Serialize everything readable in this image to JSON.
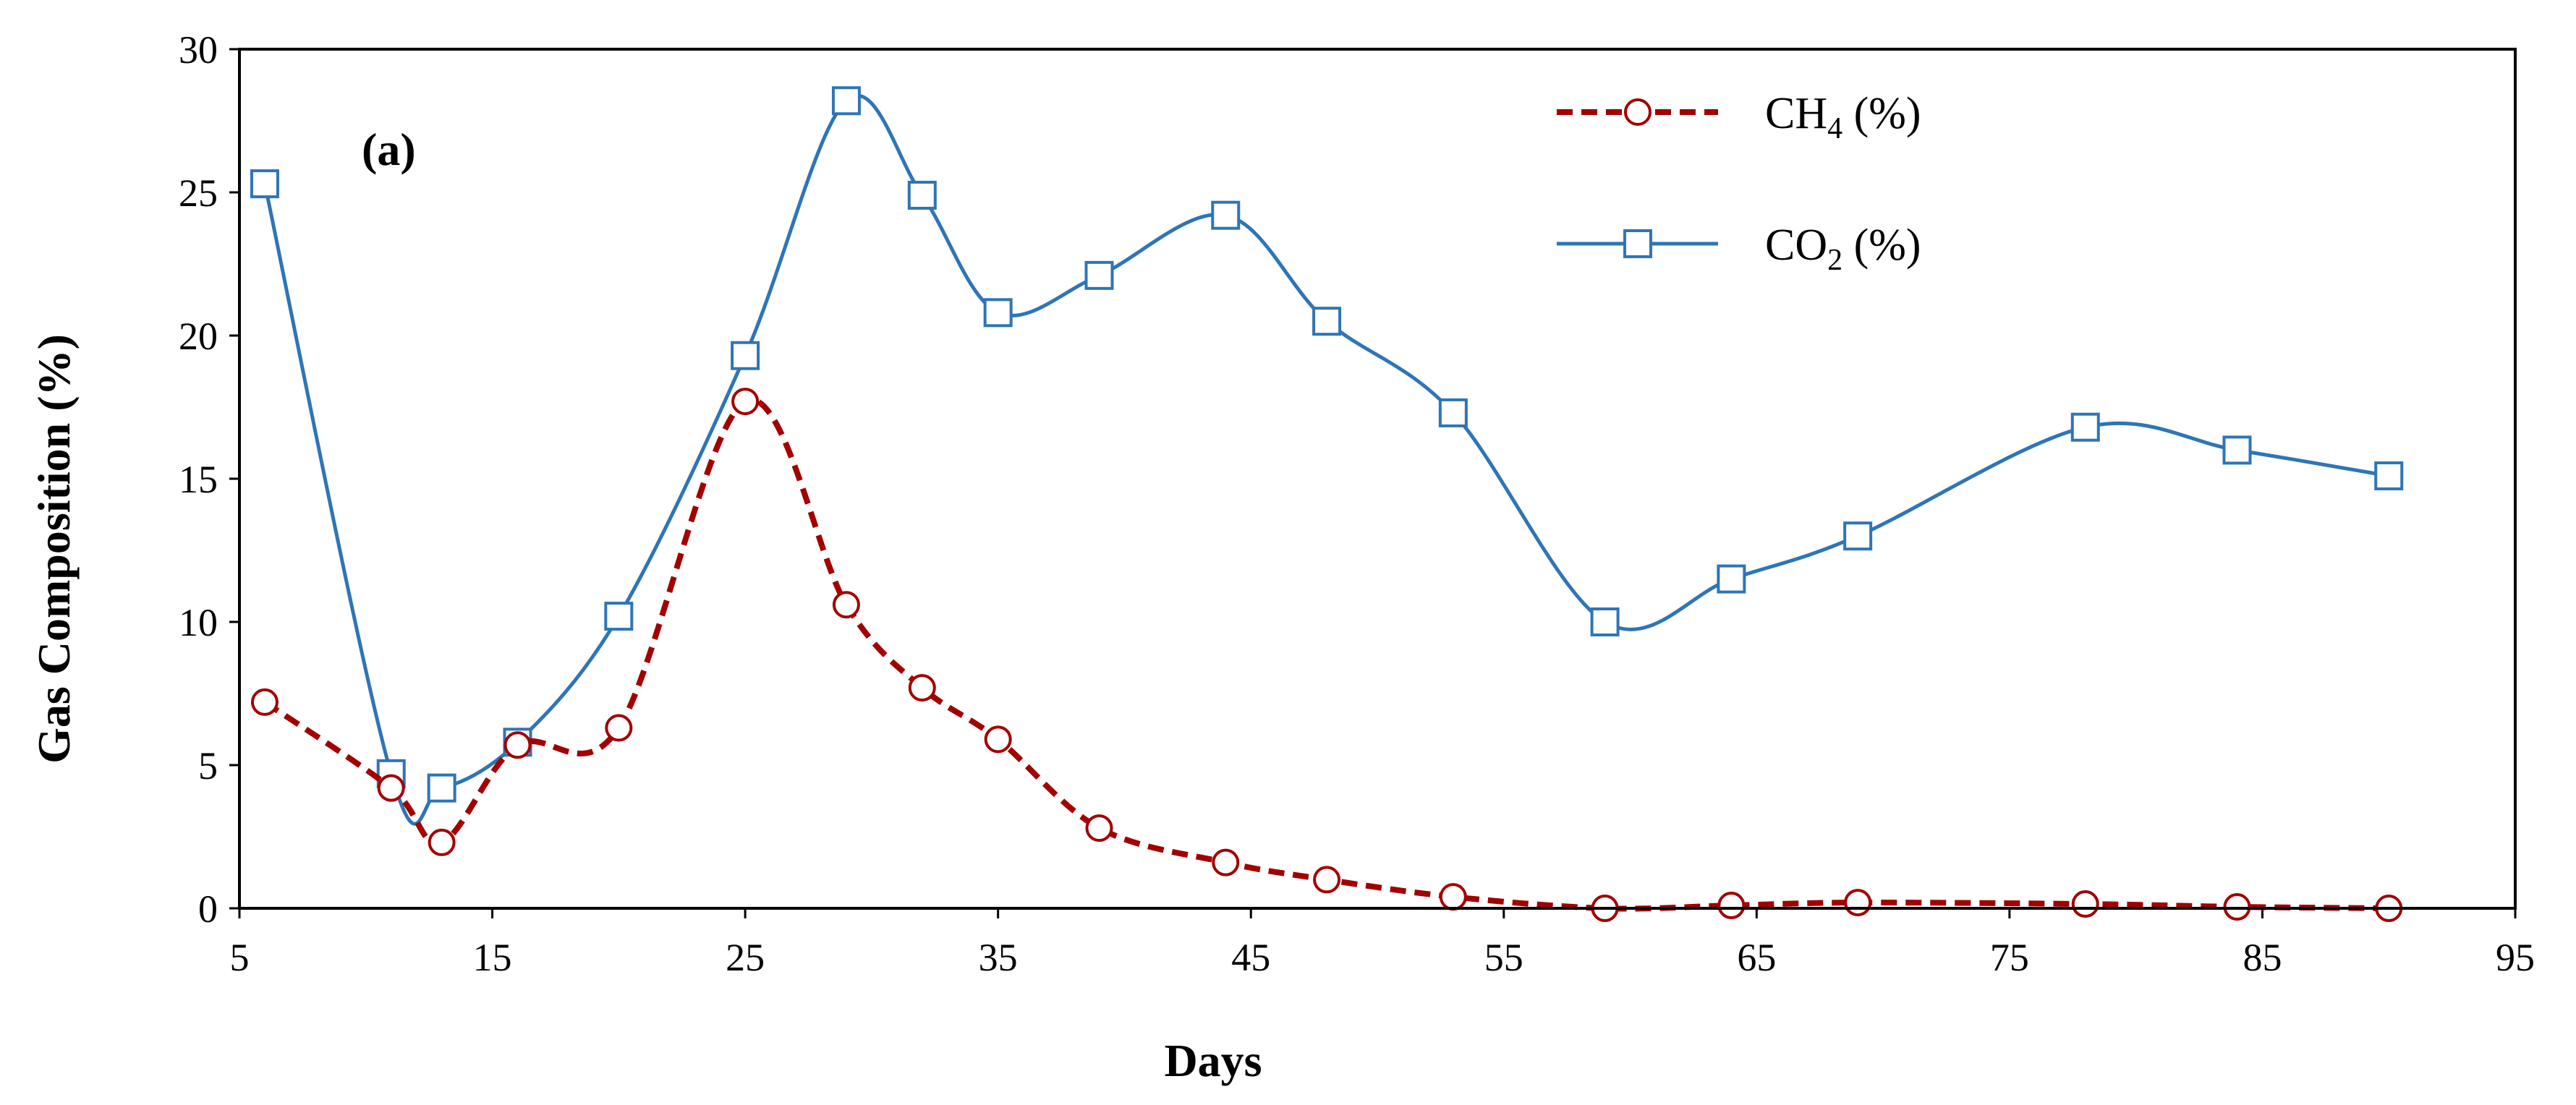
{
  "chart_data": {
    "type": "line",
    "panel_label": "(a)",
    "xlabel": "Days",
    "ylabel": "Gas Composition (%)",
    "xlim": [
      5,
      95
    ],
    "ylim": [
      0,
      30
    ],
    "xticks": [
      5,
      15,
      25,
      35,
      45,
      55,
      65,
      75,
      85,
      95
    ],
    "yticks": [
      0,
      5,
      10,
      15,
      20,
      25,
      30
    ],
    "grid": false,
    "legend_position": "top-right",
    "series": [
      {
        "key": "ch4",
        "name": "CH4 (%)",
        "legend_base": "CH",
        "legend_sub": "4",
        "legend_rest": " (%)",
        "color": "#A30000",
        "line_style": "dashed",
        "marker": "circle",
        "x": [
          6,
          11,
          13,
          16,
          20,
          25,
          29,
          32,
          35,
          39,
          44,
          48,
          53,
          59,
          64,
          69,
          78,
          84,
          90
        ],
        "y": [
          7.2,
          4.2,
          2.3,
          5.7,
          6.3,
          17.7,
          10.6,
          7.7,
          5.9,
          2.8,
          1.6,
          1.0,
          0.4,
          0.0,
          0.1,
          0.2,
          0.15,
          0.05,
          0.0
        ]
      },
      {
        "key": "co2",
        "name": "CO2 (%)",
        "legend_base": "CO",
        "legend_sub": "2",
        "legend_rest": " (%)",
        "color": "#2E75B6",
        "line_style": "solid",
        "marker": "square",
        "x": [
          6,
          11,
          13,
          16,
          20,
          25,
          29,
          32,
          35,
          39,
          44,
          48,
          53,
          59,
          64,
          69,
          78,
          84,
          90
        ],
        "y": [
          25.3,
          4.7,
          4.2,
          5.8,
          10.2,
          19.3,
          28.2,
          24.9,
          20.8,
          22.1,
          24.2,
          20.5,
          17.3,
          10.0,
          11.5,
          13.0,
          16.8,
          16.0,
          15.1
        ]
      }
    ]
  }
}
